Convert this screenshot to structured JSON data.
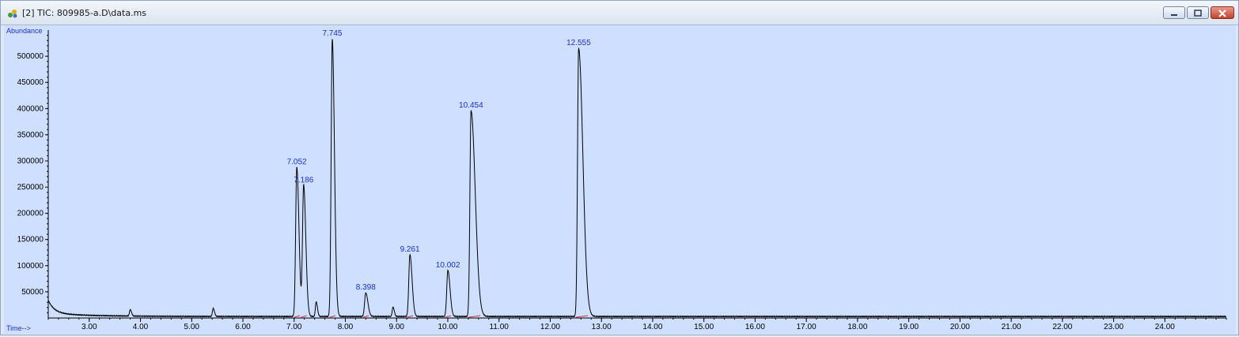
{
  "window": {
    "title": "[2] TIC: 809985-a.D\\data.ms",
    "buttons": [
      "minimize",
      "maximize",
      "close"
    ],
    "accent_color": "#c2432d"
  },
  "chart_data": {
    "type": "line",
    "ylabel": "Abundance",
    "xlabel": "Time-->",
    "x_ticks": [
      "3.00",
      "4.00",
      "5.00",
      "6.00",
      "7.00",
      "8.00",
      "9.00",
      "10.00",
      "11.00",
      "12.00",
      "13.00",
      "14.00",
      "15.00",
      "16.00",
      "17.00",
      "18.00",
      "19.00",
      "20.00",
      "21.00",
      "22.00",
      "23.00",
      "24.00"
    ],
    "y_ticks": [
      "50000",
      "100000",
      "150000",
      "200000",
      "250000",
      "300000",
      "350000",
      "400000",
      "450000",
      "500000"
    ],
    "xlim": [
      2.2,
      25.2
    ],
    "ylim": [
      0,
      550000
    ],
    "baseline": 3000,
    "series_color": "#000000",
    "label_color": "#1a2fd6",
    "plot_background": "#cfdfff",
    "peaks": [
      {
        "label": "7.052",
        "time": 7.052,
        "abundance": 285000
      },
      {
        "label": "7.186",
        "time": 7.186,
        "abundance": 250000
      },
      {
        "label": "7.745",
        "time": 7.745,
        "abundance": 530000
      },
      {
        "label": "8.398",
        "time": 8.398,
        "abundance": 45000
      },
      {
        "label": "9.261",
        "time": 9.261,
        "abundance": 118000
      },
      {
        "label": "10.002",
        "time": 10.002,
        "abundance": 88000
      },
      {
        "label": "10.454",
        "time": 10.454,
        "abundance": 393000
      },
      {
        "label": "12.555",
        "time": 12.555,
        "abundance": 512000
      }
    ],
    "minor_peaks": [
      {
        "time": 3.8,
        "abundance": 12000
      },
      {
        "time": 5.42,
        "abundance": 15000
      },
      {
        "time": 7.43,
        "abundance": 28000
      },
      {
        "time": 8.93,
        "abundance": 18000
      }
    ]
  }
}
